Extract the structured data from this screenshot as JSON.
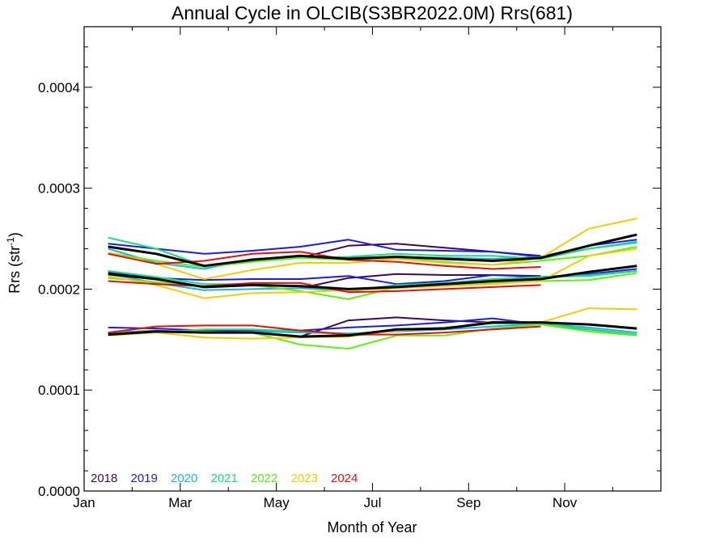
{
  "chart_data": {
    "type": "line",
    "title": "Annual Cycle in OLCIB(S3BR2022.0M) Rrs(681)",
    "xlabel": "Month of Year",
    "ylabel": "Rrs (str",
    "ylabel_sup": "-1",
    "ylabel_close": ")",
    "xlim": [
      1,
      13
    ],
    "ylim": [
      0,
      0.00046
    ],
    "x_ticks": [
      {
        "label": "Jan",
        "value": 1
      },
      {
        "label": "Mar",
        "value": 3
      },
      {
        "label": "May",
        "value": 5
      },
      {
        "label": "Jul",
        "value": 7
      },
      {
        "label": "Sep",
        "value": 9
      },
      {
        "label": "Nov",
        "value": 11
      }
    ],
    "y_ticks": [
      {
        "label": "0.0000",
        "value": 0
      },
      {
        "label": "0.0001",
        "value": 0.0001
      },
      {
        "label": "0.0002",
        "value": 0.0002
      },
      {
        "label": "0.0003",
        "value": 0.0003
      },
      {
        "label": "0.0004",
        "value": 0.0004
      }
    ],
    "legend_position": "bottom-left",
    "x": [
      1.5,
      2.5,
      3.5,
      4.5,
      5.5,
      6.5,
      7.5,
      8.5,
      9.5,
      10.5,
      11.5,
      12.5
    ],
    "series": [
      {
        "name": "2018",
        "color": "#3d0a57",
        "groups": [
          {
            "start_index": 4,
            "values": [
              0.000231,
              0.000243,
              0.000245,
              0.000241,
              0.000237,
              0.000233
            ]
          },
          {
            "start_index": 4,
            "values": [
              0.000201,
              0.000211,
              0.000215,
              0.000214,
              0.000214,
              0.000213
            ]
          },
          {
            "start_index": 4,
            "values": [
              0.000153,
              0.000169,
              0.000172,
              0.000169,
              0.000167,
              0.000166
            ]
          }
        ]
      },
      {
        "name": "2019",
        "color": "#1c1ce0",
        "groups": [
          {
            "start_index": 0,
            "values": [
              0.000245,
              0.00024,
              0.000235,
              0.000238,
              0.000242,
              0.000249,
              0.000239,
              0.000238,
              0.000237,
              0.000232,
              0.000243,
              0.000249
            ]
          },
          {
            "start_index": 0,
            "values": [
              0.000217,
              0.000211,
              0.000209,
              0.00021,
              0.00021,
              0.000213,
              0.000205,
              0.000208,
              0.000214,
              0.000212,
              0.000215,
              0.00022
            ]
          },
          {
            "start_index": 0,
            "values": [
              0.000162,
              0.000161,
              0.000159,
              0.000159,
              0.000159,
              0.000162,
              0.000164,
              0.000167,
              0.000171,
              0.000165,
              0.00016,
              0.000155
            ]
          }
        ]
      },
      {
        "name": "2020",
        "color": "#1bb3ea",
        "groups": [
          {
            "start_index": 0,
            "values": [
              0.00024,
              0.000226,
              0.00022,
              0.00023,
              0.000232,
              0.000231,
              0.000232,
              0.000231,
              0.00023,
              0.000232,
              0.00024,
              0.000247
            ]
          },
          {
            "start_index": 0,
            "values": [
              0.000215,
              0.000206,
              0.000199,
              0.0002,
              0.000201,
              0.000198,
              0.000202,
              0.000205,
              0.000208,
              0.000212,
              0.000214,
              0.000218
            ]
          },
          {
            "start_index": 0,
            "values": [
              0.000157,
              0.000159,
              0.000157,
              0.000158,
              0.000157,
              0.000156,
              0.000158,
              0.00016,
              0.000163,
              0.000166,
              0.000162,
              0.000157
            ]
          }
        ]
      },
      {
        "name": "2021",
        "color": "#17e07a",
        "groups": [
          {
            "start_index": 0,
            "values": [
              0.000251,
              0.00024,
              0.000223,
              0.000229,
              0.000231,
              0.000232,
              0.000235,
              0.000233,
              0.000233,
              0.00023,
              0.00024,
              0.000246
            ]
          },
          {
            "start_index": 0,
            "values": [
              0.000218,
              0.000212,
              0.000205,
              0.000205,
              0.000203,
              0.000198,
              0.000204,
              0.000206,
              0.00021,
              0.000212,
              0.000213,
              0.000218
            ]
          },
          {
            "start_index": 0,
            "values": [
              0.000157,
              0.000157,
              0.00016,
              0.00016,
              0.000158,
              0.000155,
              0.00016,
              0.000162,
              0.000166,
              0.000166,
              0.00016,
              0.000155
            ]
          }
        ]
      },
      {
        "name": "2022",
        "color": "#5ef014",
        "groups": [
          {
            "start_index": 0,
            "values": [
              0.000236,
              0.000228,
              0.000222,
              0.000227,
              0.000231,
              0.000229,
              0.000231,
              0.000227,
              0.000224,
              0.000228,
              0.000233,
              0.000242
            ]
          },
          {
            "start_index": 0,
            "values": [
              0.000211,
              0.000207,
              0.000202,
              0.000204,
              0.000198,
              0.00019,
              0.000202,
              0.000204,
              0.000206,
              0.000208,
              0.000209,
              0.000216
            ]
          },
          {
            "start_index": 0,
            "values": [
              0.000155,
              0.000157,
              0.000158,
              0.000157,
              0.000145,
              0.000141,
              0.000154,
              0.000154,
              0.000161,
              0.000165,
              0.000158,
              0.000154
            ]
          }
        ]
      },
      {
        "name": "2023",
        "color": "#f5cc00",
        "groups": [
          {
            "start_index": 0,
            "values": [
              0.000236,
              0.000225,
              0.00021,
              0.000219,
              0.000226,
              0.000226,
              0.00023,
              0.000226,
              0.000224,
              0.000231,
              0.00026,
              0.00027
            ]
          },
          {
            "start_index": 0,
            "values": [
              0.000213,
              0.000204,
              0.000191,
              0.000196,
              0.000197,
              0.000199,
              0.000201,
              0.000203,
              0.000205,
              0.000208,
              0.000233,
              0.00024
            ]
          },
          {
            "start_index": 0,
            "values": [
              0.000154,
              0.000157,
              0.000152,
              0.000151,
              0.000152,
              0.000153,
              0.000159,
              0.000161,
              0.000168,
              0.000167,
              0.000181,
              0.00018
            ]
          }
        ]
      },
      {
        "name": "2024",
        "color": "#e60d0d",
        "groups": [
          {
            "start_index": 0,
            "values": [
              0.000235,
              0.000225,
              0.000228,
              0.000235,
              0.000237,
              0.000229,
              0.000227,
              0.000223,
              0.00022,
              0.000222
            ]
          },
          {
            "start_index": 0,
            "values": [
              0.000208,
              0.000205,
              0.000203,
              0.000206,
              0.000206,
              0.000197,
              0.000198,
              0.0002,
              0.000202,
              0.000204
            ]
          },
          {
            "start_index": 0,
            "values": [
              0.000157,
              0.000163,
              0.000164,
              0.000164,
              0.000159,
              0.000155,
              0.000155,
              0.000157,
              0.00016,
              0.000163
            ]
          }
        ]
      },
      {
        "name": "",
        "color": "#000000",
        "groups": [
          {
            "start_index": 0,
            "values": [
              0.000242,
              0.000235,
              0.000223,
              0.000229,
              0.000233,
              0.00023,
              0.000232,
              0.00023,
              0.000228,
              0.000231,
              0.000243,
              0.000254
            ]
          },
          {
            "start_index": 0,
            "values": [
              0.000215,
              0.00021,
              0.000202,
              0.000204,
              0.000203,
              0.0002,
              0.000202,
              0.000205,
              0.000208,
              0.00021,
              0.000217,
              0.000223
            ]
          },
          {
            "start_index": 0,
            "values": [
              0.000155,
              0.000158,
              0.000157,
              0.000157,
              0.000153,
              0.000154,
              0.00016,
              0.000161,
              0.000167,
              0.000167,
              0.000165,
              0.000161
            ]
          }
        ]
      }
    ]
  }
}
